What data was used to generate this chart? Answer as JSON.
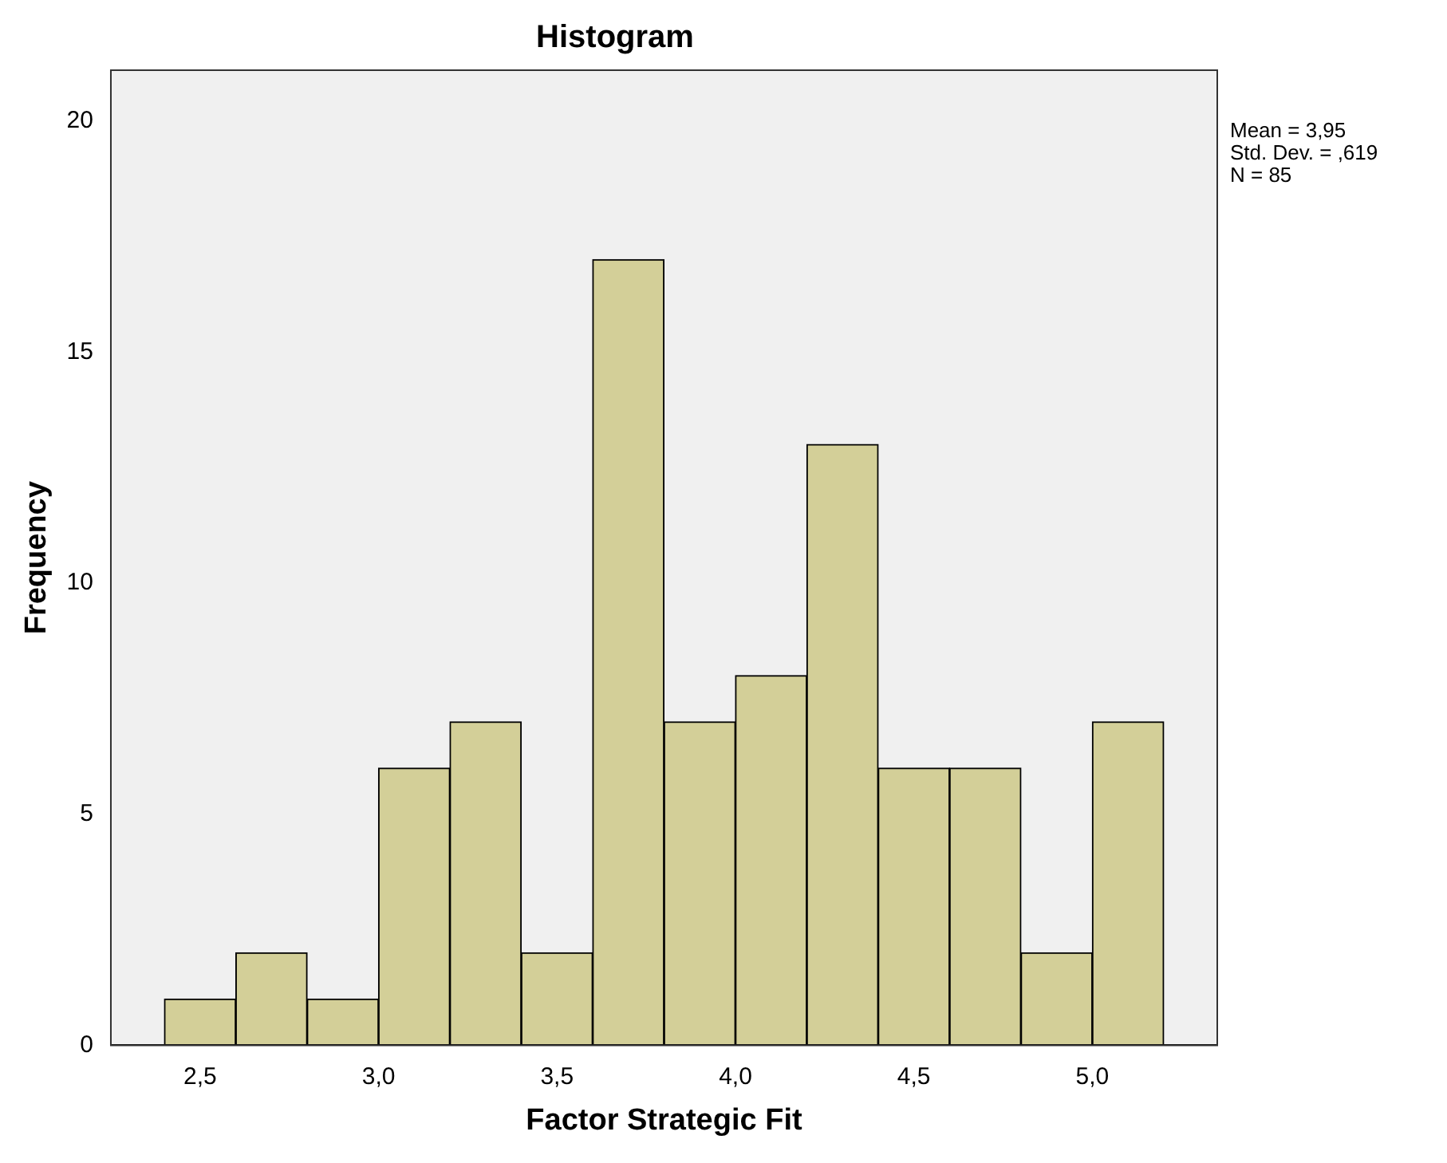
{
  "chart_data": {
    "type": "histogram",
    "title": "Histogram",
    "xlabel": "Factor Strategic Fit",
    "ylabel": "Frequency",
    "bins": [
      2.4,
      2.6,
      2.8,
      3.0,
      3.2,
      3.4,
      3.6,
      3.8,
      4.0,
      4.2,
      4.4,
      4.6,
      4.8,
      5.0,
      5.2
    ],
    "values": [
      1,
      2,
      1,
      6,
      7,
      2,
      17,
      7,
      8,
      13,
      6,
      6,
      2,
      7
    ],
    "color": "#d3cf98",
    "xlim": [
      2.25,
      5.35
    ],
    "xticks": [
      {
        "value": 2.5,
        "label": "2,5"
      },
      {
        "value": 3.0,
        "label": "3,0"
      },
      {
        "value": 3.5,
        "label": "3,5"
      },
      {
        "value": 4.0,
        "label": "4,0"
      },
      {
        "value": 4.5,
        "label": "4,5"
      },
      {
        "value": 5.0,
        "label": "5,0"
      }
    ],
    "ylim": [
      0,
      21.1
    ],
    "yticks": [
      0,
      5,
      10,
      15,
      20
    ],
    "grid": false,
    "legend": false,
    "annotations": [
      "Mean = 3,95",
      "Std. Dev. = ,619",
      "N = 85"
    ]
  }
}
